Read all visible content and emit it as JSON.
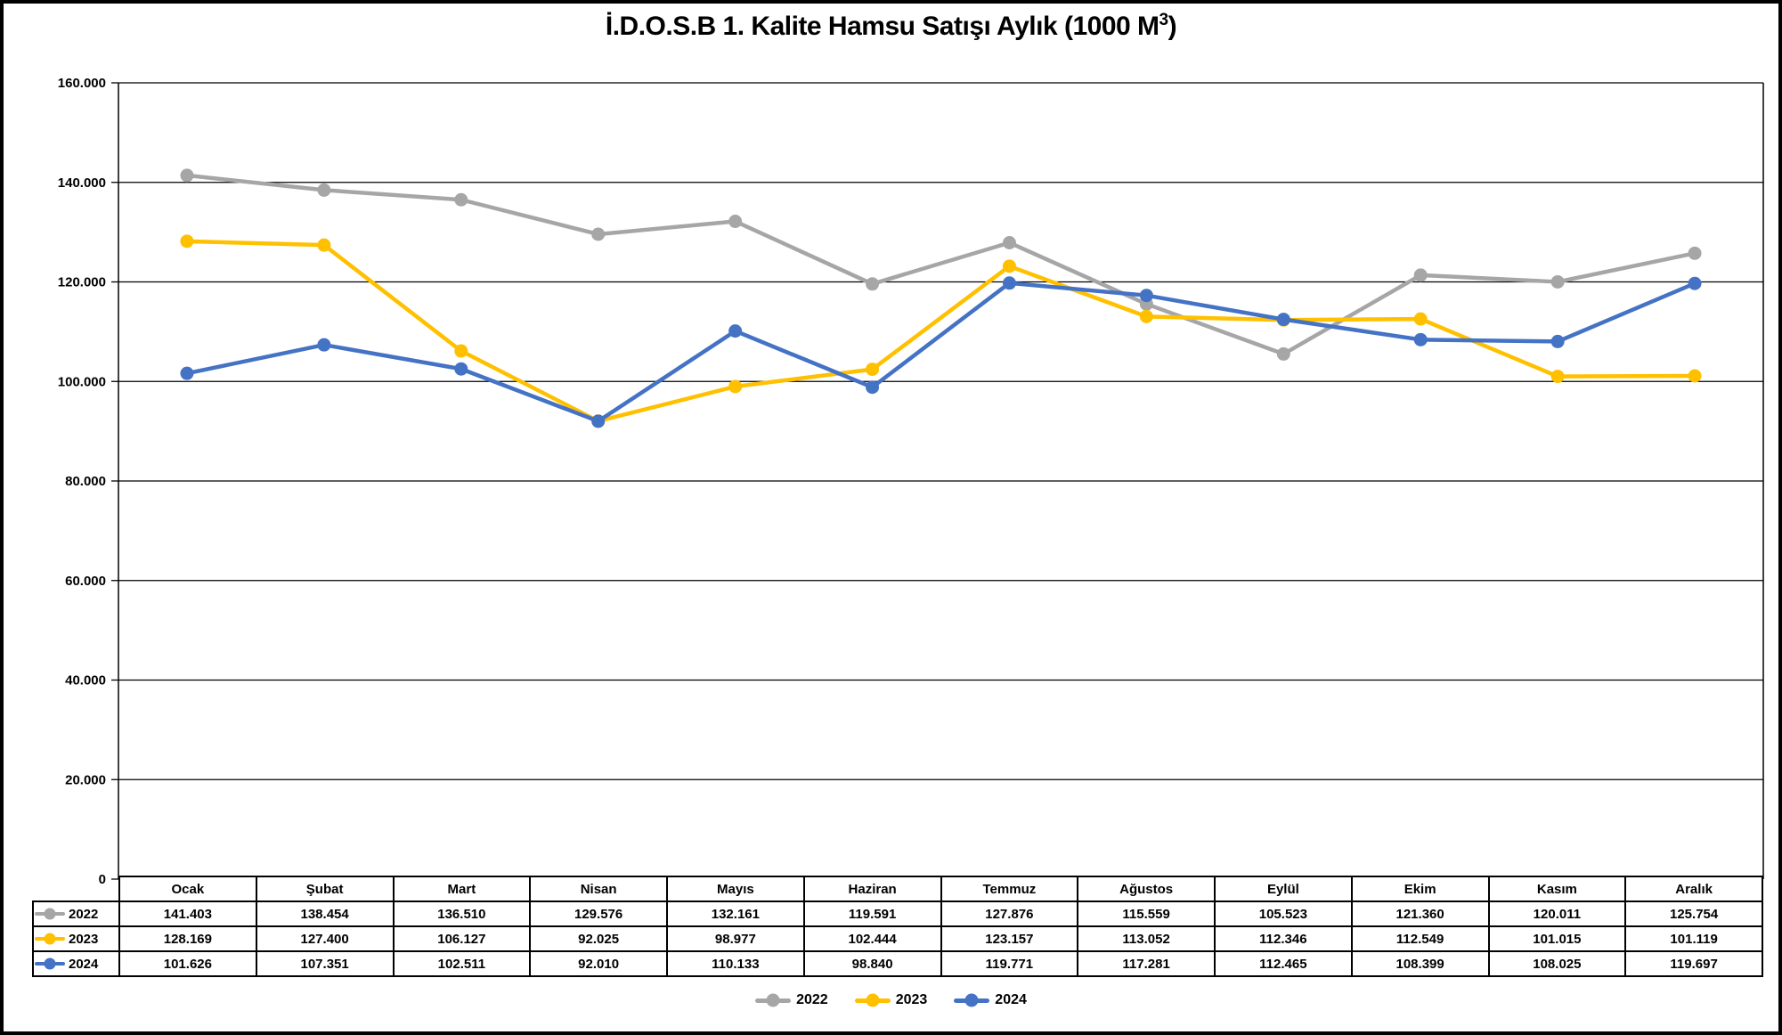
{
  "title": {
    "main": "İ.D.O.S.B 1. Kalite Hamsu Satışı Aylık (1000 M",
    "sup": "3",
    "tail": ")"
  },
  "colors": {
    "background": "#FFFFFF",
    "border": "#000000",
    "gridline": "#000000",
    "axis": "#000000",
    "series_2022": "#A6A6A6",
    "series_2023": "#FFC000",
    "series_2024": "#4472C4"
  },
  "chart_data": {
    "type": "line",
    "title": "İ.D.O.S.B 1. Kalite Hamsu Satışı Aylık (1000 M³)",
    "categories": [
      "Ocak",
      "Şubat",
      "Mart",
      "Nisan",
      "Mayıs",
      "Haziran",
      "Temmuz",
      "Ağustos",
      "Eylül",
      "Ekim",
      "Kasım",
      "Aralık"
    ],
    "series": [
      {
        "name": "2022",
        "color": "#A6A6A6",
        "values": [
          141403,
          138454,
          136510,
          129576,
          132161,
          119591,
          127876,
          115559,
          105523,
          121360,
          120011,
          125754
        ],
        "display": [
          "141.403",
          "138.454",
          "136.510",
          "129.576",
          "132.161",
          "119.591",
          "127.876",
          "115.559",
          "105.523",
          "121.360",
          "120.011",
          "125.754"
        ]
      },
      {
        "name": "2023",
        "color": "#FFC000",
        "values": [
          128169,
          127400,
          106127,
          92025,
          98977,
          102444,
          123157,
          113052,
          112346,
          112549,
          101015,
          101119
        ],
        "display": [
          "128.169",
          "127.400",
          "106.127",
          "92.025",
          "98.977",
          "102.444",
          "123.157",
          "113.052",
          "112.346",
          "112.549",
          "101.015",
          "101.119"
        ]
      },
      {
        "name": "2024",
        "color": "#4472C4",
        "values": [
          101626,
          107351,
          102511,
          92010,
          110133,
          98840,
          119771,
          117281,
          112465,
          108399,
          108025,
          119697
        ],
        "display": [
          "101.626",
          "107.351",
          "102.511",
          "92.010",
          "110.133",
          "98.840",
          "119.771",
          "117.281",
          "112.465",
          "108.399",
          "108.025",
          "119.697"
        ]
      }
    ],
    "ylim": [
      0,
      160000
    ],
    "ytick_step": 20000,
    "yticks_display": [
      "0",
      "20.000",
      "40.000",
      "60.000",
      "80.000",
      "100.000",
      "120.000",
      "140.000",
      "160.000"
    ],
    "grid": true,
    "legend_position": "bottom",
    "data_table_shown": true
  }
}
